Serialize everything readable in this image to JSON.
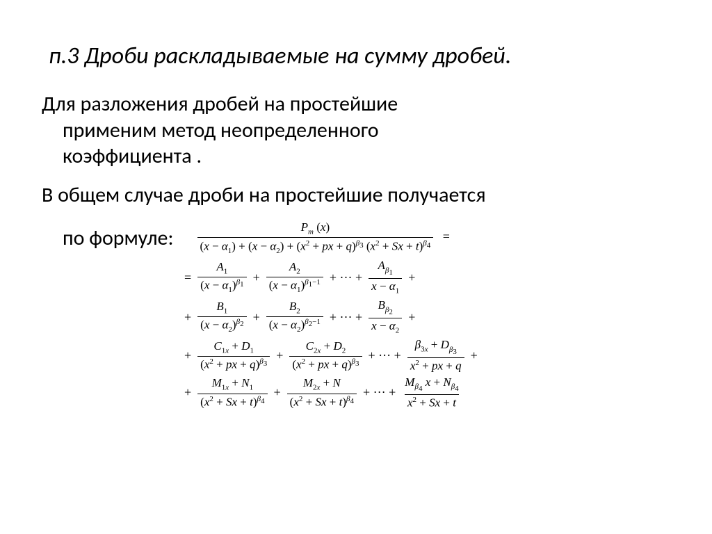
{
  "title": "п.3 Дроби раскладываемые на сумму дробей.",
  "para1_line1": "Для разложения дробей на простейшие",
  "para1_line2": "применим метод неопределенного",
  "para1_line3": "коэффициента .",
  "para2_line1": "В общем случае дроби на простейшие получается",
  "para2_line2": "по формуле:",
  "formula": {
    "main_num": "P_m (x)",
    "main_den": "(x − α₁) + (x − α₂) + (x² + px + q)^β₃ (x² + Sx + t)^β₄",
    "row_A": {
      "t1_num": "A₁",
      "t1_den": "(x − α₁)^β₁",
      "t2_num": "A₂",
      "t2_den": "(x − α₁)^(β₁−1)",
      "t3_num": "A_β₁",
      "t3_den": "x − α₁"
    },
    "row_B": {
      "t1_num": "B₁",
      "t1_den": "(x − α₂)^β₂",
      "t2_num": "B₂",
      "t2_den": "(x − α₂)^(β₂−1)",
      "t3_num": "B_β₂",
      "t3_den": "x − α₂"
    },
    "row_C": {
      "t1_num": "C₁ₓ + D₁",
      "t1_den": "(x² + px + q)^β₃",
      "t2_num": "C₂ₓ + D₂",
      "t2_den": "(x² + px + q)^β₃",
      "t3_num": "β₃ₓ + D_β₃",
      "t3_den": "x² + px + q"
    },
    "row_M": {
      "t1_num": "M₁ₓ + N₁",
      "t1_den": "(x² + Sx + t)^β₄",
      "t2_num": "M₂ₓ + N",
      "t2_den": "(x² + Sx + t)^β₄",
      "t3_num": "M_β₄ x + N_β₄",
      "t3_den": "x² + Sx + t"
    }
  },
  "style": {
    "title_fontsize": 34,
    "body_fontsize": 30,
    "formula_fontsize": 18,
    "text_color": "#000000",
    "background_color": "#ffffff",
    "title_style": "italic"
  }
}
